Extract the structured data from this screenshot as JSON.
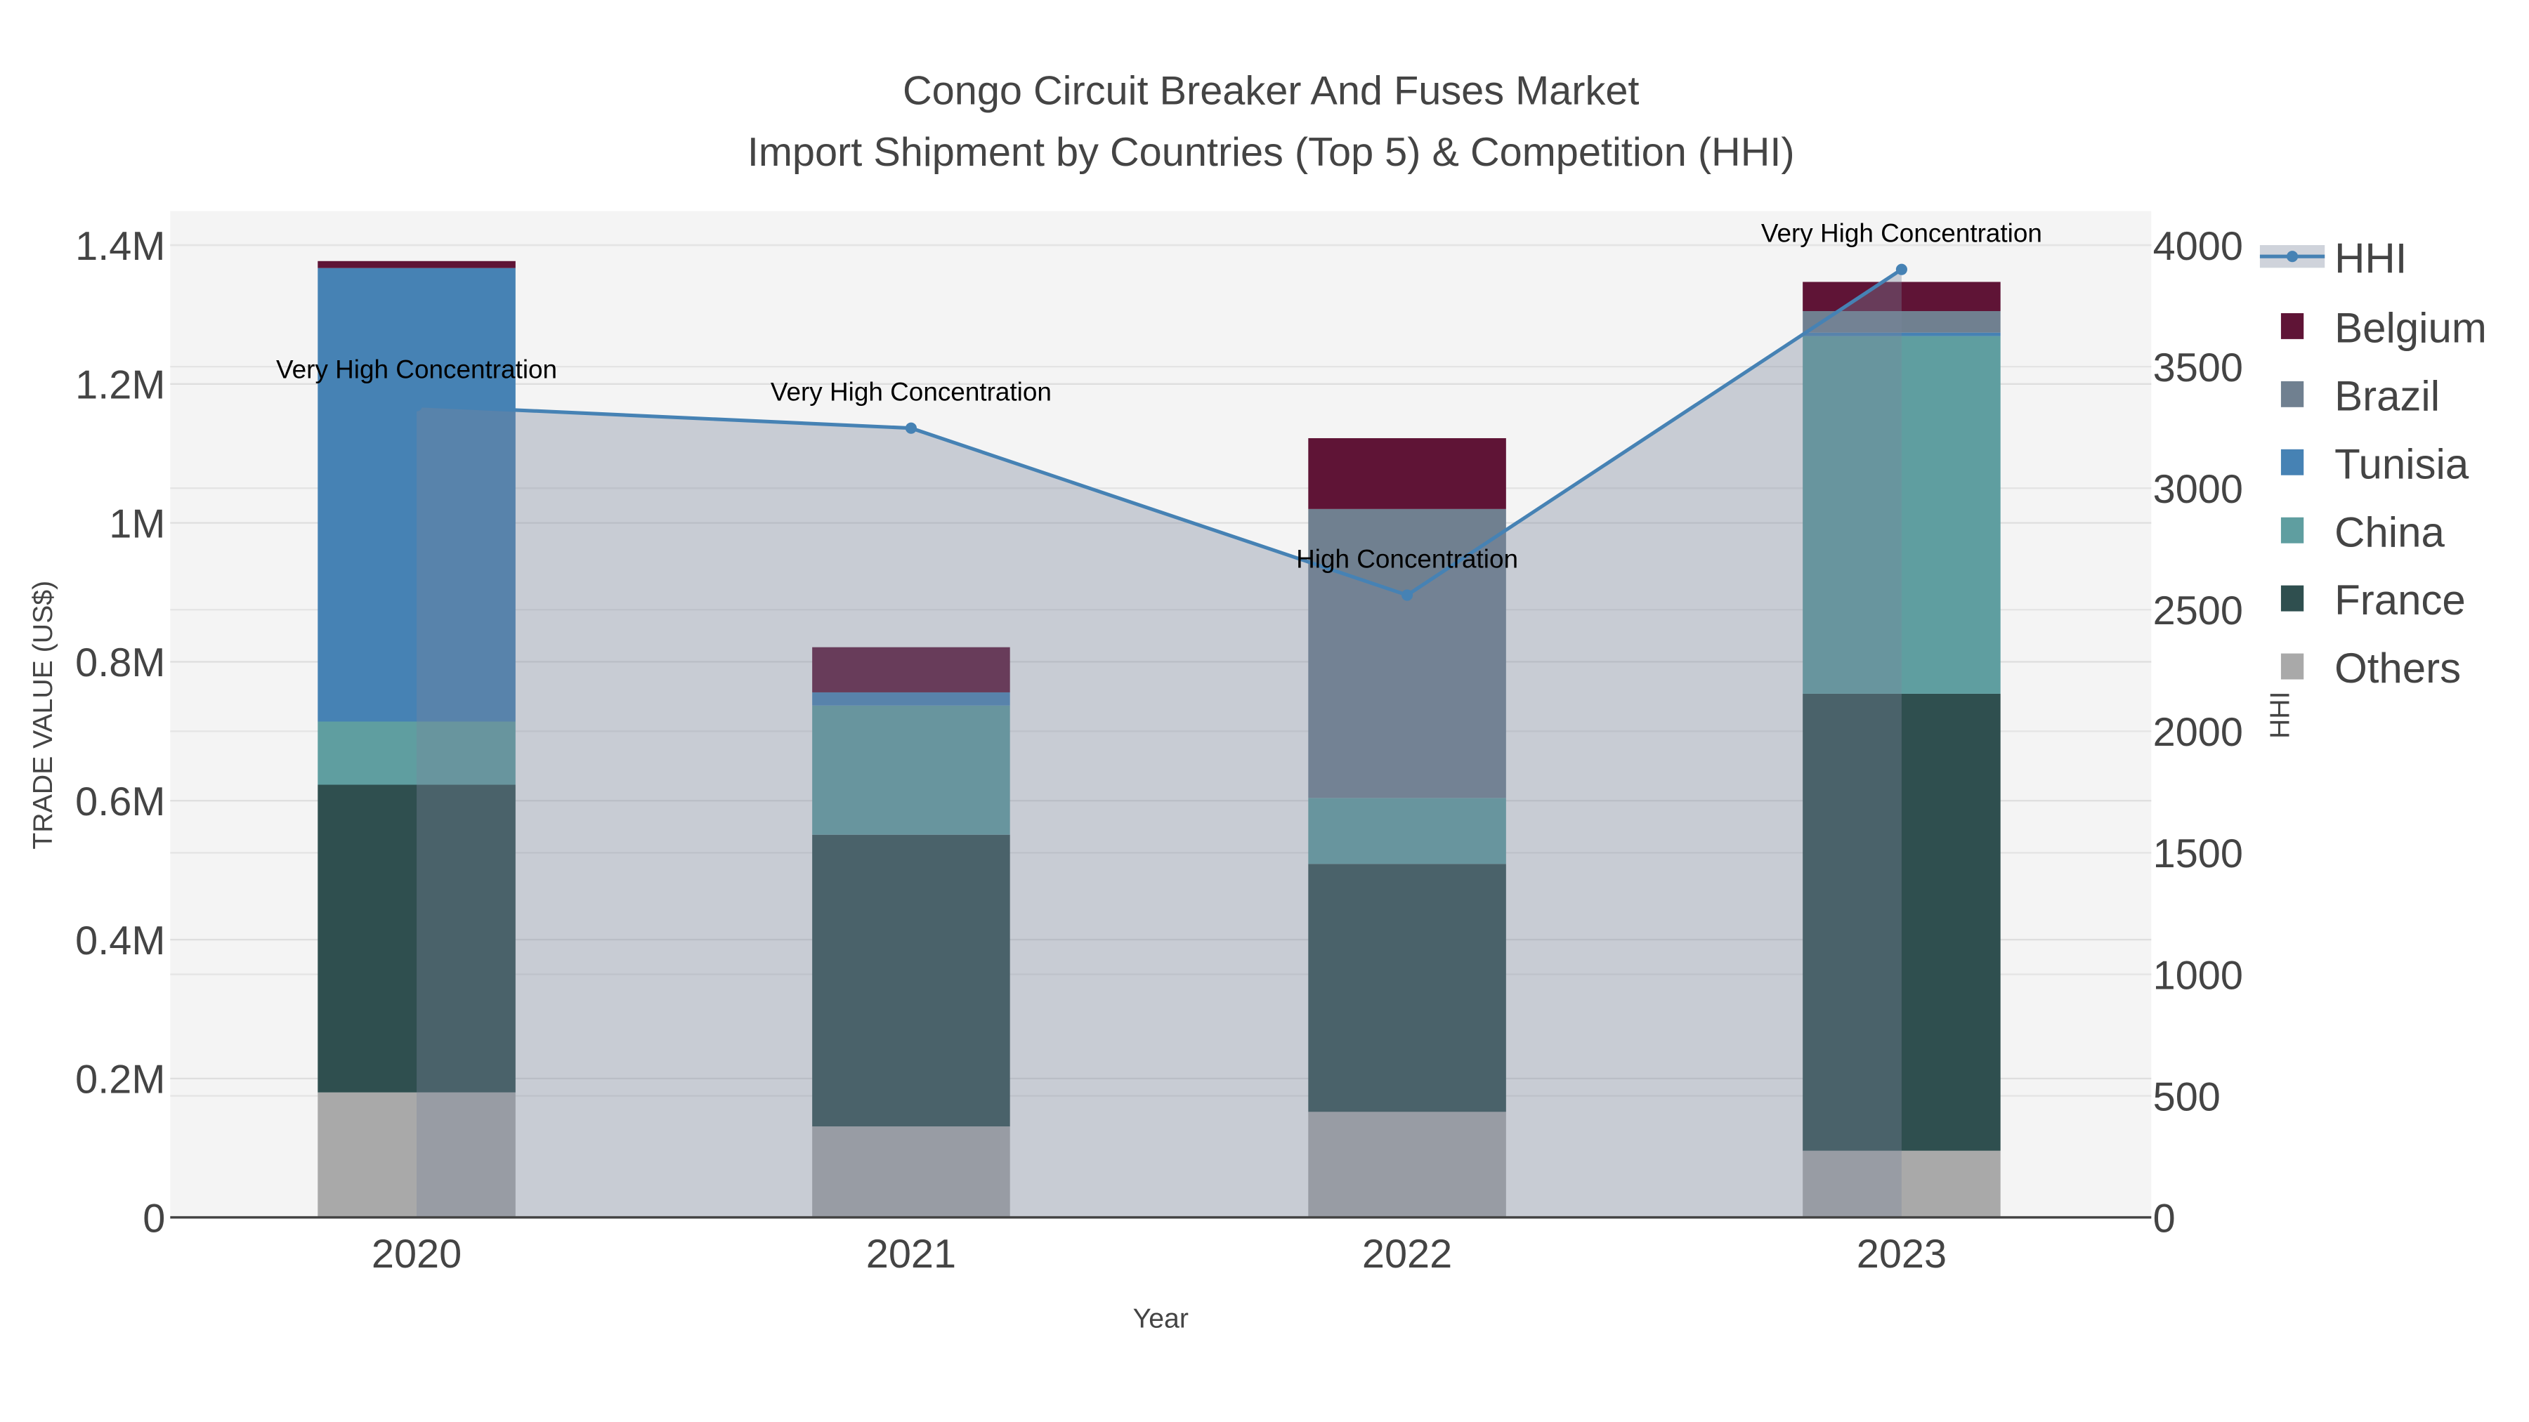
{
  "chart_data": {
    "type": "bar",
    "title_line1": "Congo Circuit Breaker And Fuses Market",
    "title_line2": "Import Shipment by Countries (Top 5) & Competition (HHI)",
    "xlabel": "Year",
    "ylabel": "TRADE VALUE (US$)",
    "y2label": "HHI",
    "categories": [
      "2020",
      "2021",
      "2022",
      "2023"
    ],
    "ylim": [
      0,
      1450000
    ],
    "y2lim": [
      0,
      4140
    ],
    "yticks": [
      0,
      200000,
      400000,
      600000,
      800000,
      1000000,
      1200000,
      1400000
    ],
    "ytick_labels": [
      "0",
      "0.2M",
      "0.4M",
      "0.6M",
      "0.8M",
      "1M",
      "1.2M",
      "1.4M"
    ],
    "y2ticks": [
      0,
      500,
      1000,
      1500,
      2000,
      2500,
      3000,
      3500,
      4000
    ],
    "y2tick_labels": [
      "0",
      "500",
      "1000",
      "1500",
      "2000",
      "2500",
      "3000",
      "3500",
      "4000"
    ],
    "series": [
      {
        "name": "Others",
        "color": "#a9a9a9",
        "values": [
          180000,
          131000,
          152000,
          96000
        ]
      },
      {
        "name": "France",
        "color": "#2f4f4f",
        "values": [
          443000,
          420000,
          357000,
          658000
        ]
      },
      {
        "name": "China",
        "color": "#5f9ea0",
        "values": [
          91000,
          186000,
          95000,
          515000
        ]
      },
      {
        "name": "Tunisia",
        "color": "#4682b4",
        "values": [
          653000,
          19000,
          0,
          5000
        ]
      },
      {
        "name": "Brazil",
        "color": "#708090",
        "values": [
          0,
          0,
          416000,
          31000
        ]
      },
      {
        "name": "Belgium",
        "color": "#5f1436",
        "values": [
          10000,
          65000,
          102000,
          42000
        ]
      }
    ],
    "hhi": {
      "name": "HHI",
      "color": "#4682b4",
      "values": [
        3340,
        3247,
        2560,
        3900
      ],
      "annotations": [
        "Very High Concentration",
        "Very High Concentration",
        "High Concentration",
        "Very High Concentration"
      ]
    },
    "legend": [
      "HHI",
      "Belgium",
      "Brazil",
      "Tunisia",
      "China",
      "France",
      "Others"
    ],
    "legend_position": "right"
  }
}
